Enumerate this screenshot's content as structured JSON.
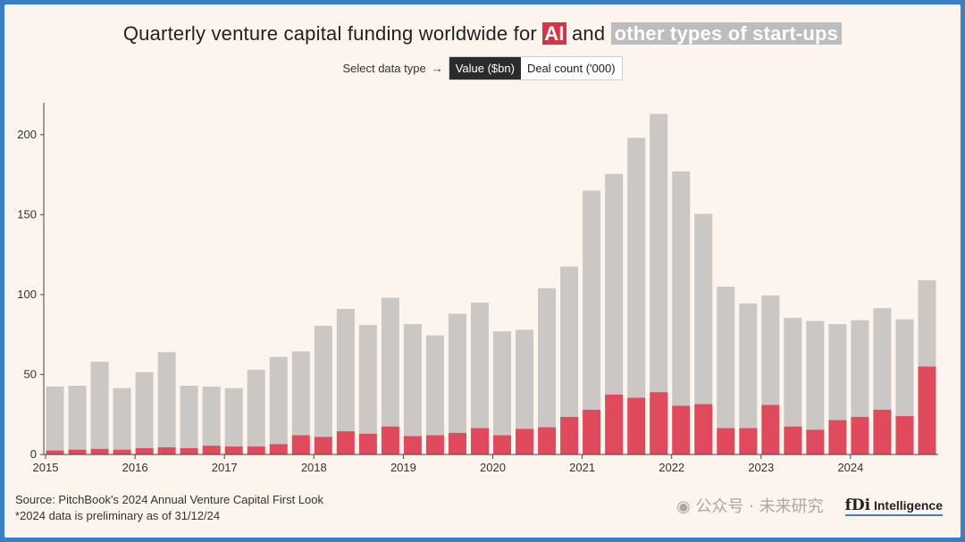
{
  "title": {
    "prefix": "Quarterly venture capital funding worldwide for ",
    "ai": "AI",
    "middle": " and ",
    "other": "other types of start-ups"
  },
  "selector": {
    "label": "Select data type",
    "arrow": "→",
    "options": [
      "Value ($bn)",
      "Deal count ('000)"
    ],
    "active": "Value ($bn)"
  },
  "footer": {
    "source": "Source: PitchBook's 2024 Annual Venture Capital First Look",
    "note": "*2024 data is preliminary as of 31/12/24"
  },
  "logo": {
    "mark": "fDi",
    "name": "Intelligence"
  },
  "watermark": {
    "text": "公众号 · 未来研究",
    "icon": "wechat-icon"
  },
  "colors": {
    "ai": "#df4b5c",
    "other": "#cbc7c4",
    "background": "#fdf4ee",
    "border": "#3a7fc4"
  },
  "chart_data": {
    "type": "bar",
    "stacked": true,
    "x_tick_labels": [
      "2015",
      "2016",
      "2017",
      "2018",
      "2019",
      "2020",
      "2021",
      "2022",
      "2023",
      "2024"
    ],
    "quarters_per_year": 4,
    "ylim": [
      0,
      220
    ],
    "yticks": [
      0,
      50,
      100,
      150,
      200
    ],
    "series": [
      {
        "key": "ai",
        "values": [
          2.5,
          3,
          3.5,
          3,
          4,
          4.5,
          4,
          5.5,
          5,
          5,
          6.5,
          12,
          11,
          14.5,
          13,
          17.5,
          11.5,
          12,
          13.5,
          16.5,
          12,
          16,
          17,
          23.5,
          28,
          37.5,
          35.5,
          39,
          30.5,
          31.5,
          16.5,
          16.5,
          31,
          17.5,
          15.5,
          21.5,
          23.5,
          28,
          24,
          55
        ]
      },
      {
        "key": "other",
        "values": [
          40,
          40,
          54.5,
          38.5,
          47.5,
          59.5,
          39,
          37,
          36.5,
          48,
          54.5,
          52.5,
          69.5,
          76.5,
          68,
          80.5,
          70,
          62.5,
          74.5,
          78.5,
          65,
          62,
          87,
          94,
          137,
          138,
          162.5,
          174,
          146.5,
          119,
          88.5,
          78,
          68.5,
          68,
          68,
          60,
          60.5,
          63.5,
          60.5,
          54
        ]
      }
    ]
  }
}
